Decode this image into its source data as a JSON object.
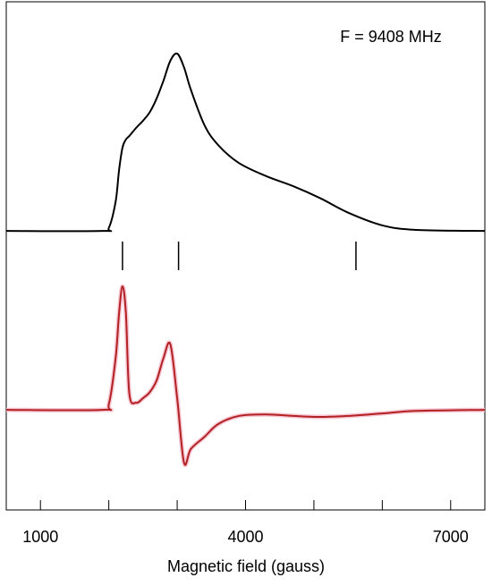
{
  "chart_data": {
    "type": "line",
    "annotation": "F = 9408 MHz",
    "xlabel": "Magnetic field (gauss)",
    "x": [
      500,
      1900,
      2000,
      2100,
      2150,
      2200,
      2250,
      2300,
      2400,
      2500,
      2600,
      2700,
      2800,
      2900,
      3000,
      3100,
      3200,
      3400,
      3600,
      3900,
      4300,
      4700,
      5100,
      5500,
      6000,
      6500,
      7500
    ],
    "series": [
      {
        "color": "#000000",
        "values": [
          54.9,
          54.9,
          55.5,
          60.7,
          66.9,
          71.3,
          72.9,
          73.6,
          75.2,
          76.6,
          78.3,
          81.0,
          84.5,
          88.4,
          89.8,
          87.1,
          82.7,
          75.7,
          71.8,
          68.3,
          65.7,
          63.7,
          61.3,
          58.5,
          56.0,
          55.1,
          54.9
        ]
      },
      {
        "color": "#b22222",
        "values": [
          19.7,
          19.7,
          20.8,
          29.9,
          38.7,
          44.0,
          38.7,
          22.9,
          21.1,
          22.0,
          23.2,
          25.5,
          29.9,
          32.6,
          22.0,
          9.3,
          12.0,
          14.4,
          16.9,
          18.5,
          18.8,
          18.5,
          18.3,
          18.5,
          19.0,
          19.5,
          19.7
        ]
      }
    ],
    "markers": [
      2200,
      3020,
      5615
    ],
    "xlim": [
      500,
      7500
    ],
    "xticks": [
      1000,
      4000,
      7000
    ],
    "xminorticks": [
      2000,
      3000,
      5000,
      6000
    ],
    "ylim": [
      0,
      100
    ]
  }
}
